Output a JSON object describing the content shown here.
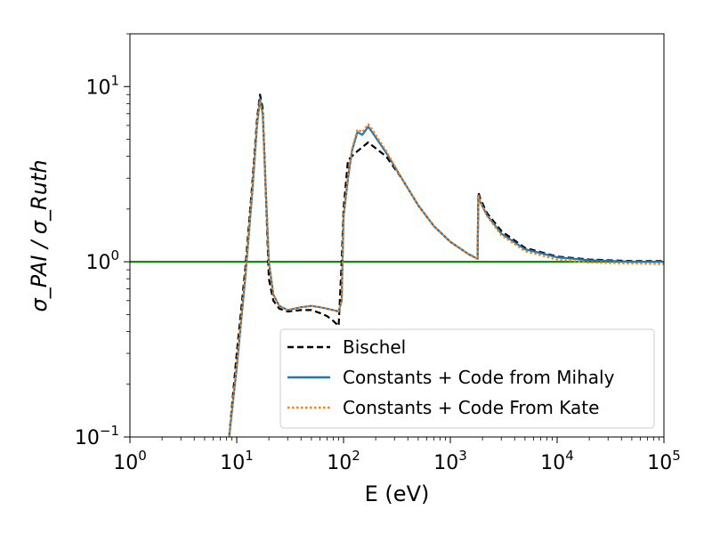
{
  "chart_data": {
    "type": "line",
    "xscale": "log",
    "yscale": "log",
    "xlim": [
      1,
      100000
    ],
    "ylim": [
      0.1,
      20
    ],
    "xlabel": "E (eV)",
    "ylabel": "σ_PAI / σ_Ruth",
    "grid": false,
    "legend_position": "lower-right",
    "x_ticks": [
      {
        "base": "10",
        "exp": "0",
        "value": 1
      },
      {
        "base": "10",
        "exp": "1",
        "value": 10
      },
      {
        "base": "10",
        "exp": "2",
        "value": 100
      },
      {
        "base": "10",
        "exp": "3",
        "value": 1000
      },
      {
        "base": "10",
        "exp": "4",
        "value": 10000
      },
      {
        "base": "10",
        "exp": "5",
        "value": 100000
      }
    ],
    "y_ticks": [
      {
        "base": "10",
        "exp": "−1",
        "value": 0.1
      },
      {
        "base": "10",
        "exp": "0",
        "value": 1
      },
      {
        "base": "10",
        "exp": "1",
        "value": 10
      }
    ],
    "reference_line": {
      "y": 1.0,
      "color": "#008000"
    },
    "series": [
      {
        "name": "Bischel",
        "color": "#000000",
        "style": "dashed",
        "x": [
          8.5,
          10,
          12,
          14,
          15.5,
          16.5,
          17.5,
          18.5,
          20,
          22,
          25,
          30,
          40,
          50,
          60,
          70,
          80,
          90,
          96,
          100,
          110,
          130,
          170,
          250,
          350,
          500,
          700,
          1000,
          1500,
          1800,
          1830,
          1900,
          2200,
          3000,
          5000,
          10000,
          20000,
          50000,
          100000
        ],
        "y": [
          0.1,
          0.3,
          0.9,
          2.8,
          6.5,
          9.0,
          7.5,
          3.0,
          0.8,
          0.6,
          0.54,
          0.52,
          0.53,
          0.53,
          0.51,
          0.49,
          0.46,
          0.43,
          1.0,
          2.0,
          3.8,
          4.2,
          4.8,
          4.0,
          3.0,
          2.1,
          1.6,
          1.3,
          1.1,
          1.05,
          2.5,
          2.3,
          1.9,
          1.5,
          1.2,
          1.07,
          1.03,
          1.01,
          1.01
        ]
      },
      {
        "name": "Constants + Code from Mihaly",
        "color": "#1f77b4",
        "style": "solid",
        "x": [
          8.5,
          10,
          12,
          14,
          15.5,
          16.5,
          17.5,
          18.5,
          20,
          22,
          25,
          30,
          40,
          50,
          60,
          70,
          80,
          90,
          96,
          100,
          110,
          120,
          135,
          150,
          170,
          185,
          250,
          350,
          500,
          700,
          1000,
          1500,
          1800,
          1830,
          1900,
          2200,
          3000,
          5000,
          10000,
          20000,
          50000,
          100000
        ],
        "y": [
          0.1,
          0.25,
          0.8,
          2.5,
          6.0,
          8.5,
          7.0,
          3.0,
          1.0,
          0.65,
          0.56,
          0.53,
          0.55,
          0.56,
          0.55,
          0.54,
          0.53,
          0.52,
          0.6,
          1.8,
          3.0,
          4.3,
          5.5,
          5.3,
          5.9,
          5.5,
          4.2,
          3.0,
          2.1,
          1.6,
          1.3,
          1.1,
          1.04,
          2.4,
          2.2,
          1.85,
          1.45,
          1.18,
          1.06,
          1.02,
          1.0,
          1.0
        ]
      },
      {
        "name": "Constants + Code From Kate",
        "color": "#ff7f0e",
        "style": "dotted",
        "x": [
          8.5,
          10,
          12,
          14,
          15.5,
          16.5,
          17.5,
          18.5,
          20,
          22,
          25,
          30,
          40,
          50,
          60,
          70,
          80,
          90,
          96,
          100,
          110,
          120,
          135,
          150,
          170,
          185,
          250,
          350,
          500,
          700,
          1000,
          1500,
          1800,
          1830,
          1900,
          2200,
          3000,
          5000,
          10000,
          20000,
          50000,
          100000
        ],
        "y": [
          0.1,
          0.26,
          0.82,
          2.6,
          6.1,
          8.3,
          6.8,
          3.0,
          1.0,
          0.65,
          0.56,
          0.53,
          0.55,
          0.56,
          0.55,
          0.54,
          0.53,
          0.52,
          0.6,
          1.8,
          3.1,
          4.4,
          5.7,
          5.5,
          6.1,
          5.7,
          4.3,
          3.0,
          2.1,
          1.6,
          1.3,
          1.1,
          1.04,
          2.4,
          2.2,
          1.83,
          1.42,
          1.15,
          1.03,
          0.99,
          0.98,
          0.97
        ]
      }
    ]
  }
}
